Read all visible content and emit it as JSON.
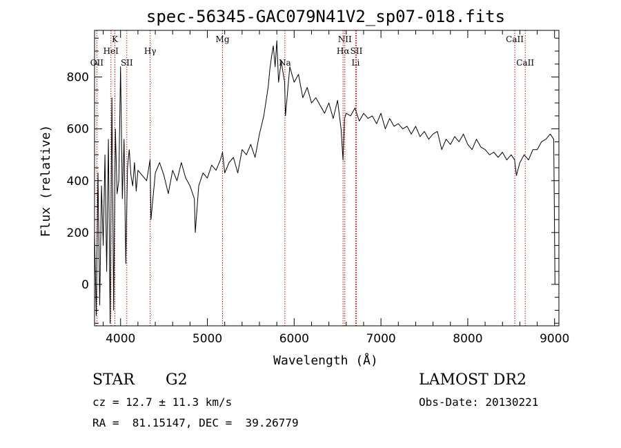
{
  "chart_data": {
    "type": "line",
    "title": "spec-56345-GAC079N41V2_sp07-018.fits",
    "xlabel": "Wavelength (Å)",
    "ylabel": "Flux (relative)",
    "xlim": [
      3700,
      9050
    ],
    "ylim": [
      -160,
      980
    ],
    "xticks": [
      4000,
      5000,
      6000,
      7000,
      8000,
      9000
    ],
    "yticks": [
      0,
      200,
      400,
      600,
      800
    ],
    "line_color": "#000000",
    "marker_color": "#cc0000",
    "grid": false,
    "spectral_lines": [
      {
        "label": "OII",
        "wavelength": 3727,
        "row": 3
      },
      {
        "label": "K",
        "wavelength": 3934,
        "row": 1
      },
      {
        "label": "HeI",
        "wavelength": 3889,
        "row": 2
      },
      {
        "label": "SII",
        "wavelength": 4072,
        "row": 3
      },
      {
        "label": "Hγ",
        "wavelength": 4341,
        "row": 2
      },
      {
        "label": "Mg",
        "wavelength": 5175,
        "row": 1
      },
      {
        "label": "Na",
        "wavelength": 5893,
        "row": 3
      },
      {
        "label": "NII",
        "wavelength": 6584,
        "row": 1
      },
      {
        "label": "Hα",
        "wavelength": 6563,
        "row": 2
      },
      {
        "label": "SII",
        "wavelength": 6717,
        "row": 2
      },
      {
        "label": "Li",
        "wavelength": 6708,
        "row": 3
      },
      {
        "label": "CaII",
        "wavelength": 8542,
        "row": 1
      },
      {
        "label": "CaII",
        "wavelength": 8662,
        "row": 3
      }
    ],
    "series": [
      {
        "x": [
          3700,
          3720,
          3740,
          3760,
          3780,
          3800,
          3820,
          3840,
          3860,
          3880,
          3900,
          3920,
          3940,
          3960,
          3980,
          4000,
          4020,
          4040,
          4060,
          4080,
          4100,
          4120,
          4140,
          4160,
          4180,
          4200,
          4250,
          4300,
          4340,
          4350,
          4400,
          4450,
          4500,
          4550,
          4600,
          4650,
          4700,
          4750,
          4800,
          4850,
          4861,
          4900,
          4950,
          5000,
          5050,
          5100,
          5150,
          5175,
          5200,
          5250,
          5300,
          5350,
          5400,
          5450,
          5500,
          5550,
          5600,
          5650,
          5700,
          5720,
          5740,
          5760,
          5780,
          5800,
          5820,
          5850,
          5890,
          5900,
          5950,
          6000,
          6050,
          6100,
          6150,
          6200,
          6250,
          6300,
          6350,
          6400,
          6450,
          6500,
          6540,
          6563,
          6580,
          6600,
          6650,
          6700,
          6750,
          6800,
          6850,
          6900,
          6950,
          7000,
          7050,
          7100,
          7150,
          7200,
          7250,
          7300,
          7350,
          7400,
          7450,
          7500,
          7550,
          7600,
          7650,
          7700,
          7750,
          7800,
          7850,
          7900,
          7950,
          8000,
          8050,
          8100,
          8150,
          8200,
          8250,
          8300,
          8350,
          8400,
          8450,
          8500,
          8540,
          8560,
          8600,
          8650,
          8700,
          8750,
          8800,
          8850,
          8900,
          8950,
          8990,
          9000,
          9005
        ],
        "y": [
          200,
          -120,
          430,
          -80,
          380,
          150,
          500,
          50,
          560,
          -150,
          720,
          -100,
          600,
          350,
          400,
          840,
          330,
          560,
          80,
          450,
          520,
          420,
          380,
          470,
          360,
          440,
          420,
          400,
          480,
          250,
          430,
          470,
          420,
          350,
          440,
          400,
          470,
          410,
          380,
          330,
          200,
          380,
          430,
          410,
          460,
          440,
          480,
          510,
          430,
          470,
          490,
          430,
          520,
          500,
          540,
          490,
          580,
          650,
          760,
          830,
          880,
          920,
          840,
          940,
          780,
          860,
          780,
          650,
          840,
          780,
          810,
          720,
          760,
          700,
          720,
          690,
          660,
          700,
          640,
          710,
          600,
          480,
          640,
          660,
          650,
          680,
          630,
          660,
          640,
          650,
          620,
          660,
          600,
          640,
          610,
          620,
          600,
          610,
          580,
          610,
          570,
          590,
          560,
          580,
          590,
          520,
          560,
          540,
          570,
          550,
          580,
          540,
          520,
          560,
          530,
          520,
          500,
          510,
          490,
          510,
          480,
          500,
          480,
          420,
          470,
          500,
          480,
          520,
          520,
          550,
          560,
          580,
          560,
          200,
          0
        ]
      }
    ]
  },
  "info": {
    "object_type": "STAR",
    "subclass": "G2",
    "survey": "LAMOST DR2",
    "redshift_line": "cz = 12.7 ± 11.3 km/s",
    "obs_date": "Obs-Date: 20130221",
    "coords": "RA =  81.15147, DEC =  39.26779"
  }
}
